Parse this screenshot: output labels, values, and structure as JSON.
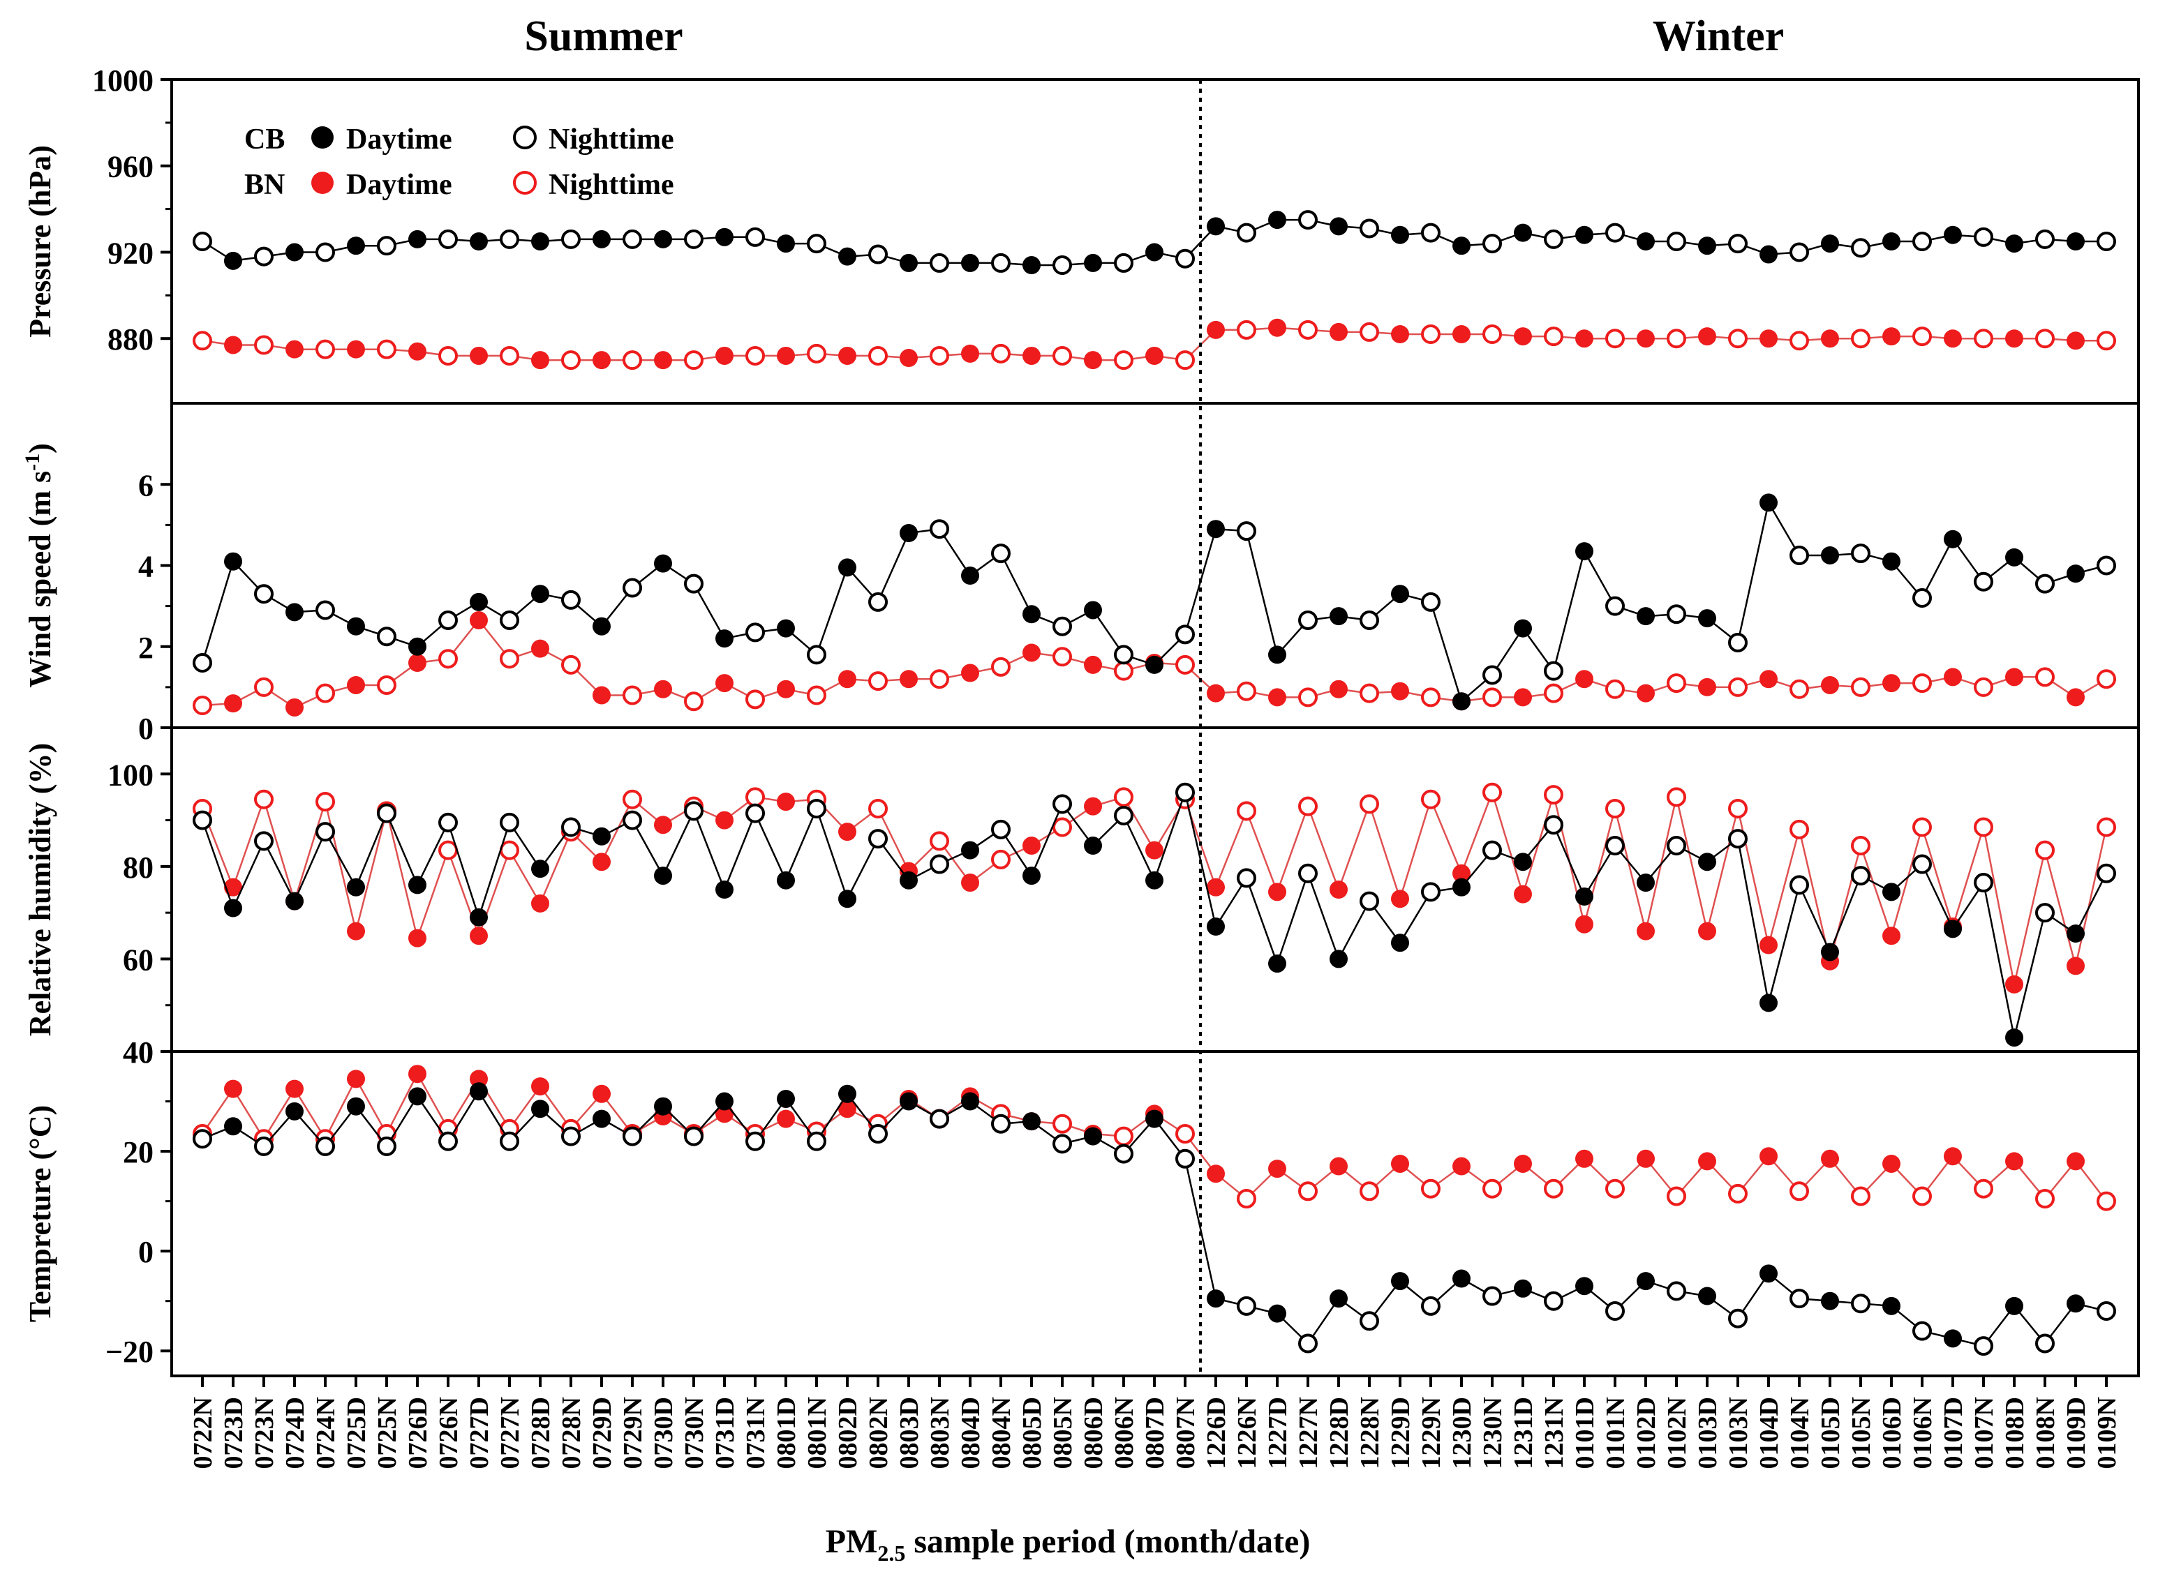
{
  "colors": {
    "cb": "#000000",
    "bn_marker": "#ee1c1c",
    "bn_line": "#e05050",
    "axis": "#000000"
  },
  "season_labels": [
    "Summer",
    "Winter"
  ],
  "x_axis": {
    "label_main": "PM",
    "label_sub": "2.5",
    "label_rest": " sample period (month/date)",
    "categories": [
      "0722N",
      "0723D",
      "0723N",
      "0724D",
      "0724N",
      "0725D",
      "0725N",
      "0726D",
      "0726N",
      "0727D",
      "0727N",
      "0728D",
      "0728N",
      "0729D",
      "0729N",
      "0730D",
      "0730N",
      "0731D",
      "0731N",
      "0801D",
      "0801N",
      "0802D",
      "0802N",
      "0803D",
      "0803N",
      "0804D",
      "0804N",
      "0805D",
      "0805N",
      "0806D",
      "0806N",
      "0807D",
      "0807N",
      "1226D",
      "1226N",
      "1227D",
      "1227N",
      "1228D",
      "1228N",
      "1229D",
      "1229N",
      "1230D",
      "1230N",
      "1231D",
      "1231N",
      "0101D",
      "0101N",
      "0102D",
      "0102N",
      "0103D",
      "0103N",
      "0104D",
      "0104N",
      "0105D",
      "0105N",
      "0106D",
      "0106N",
      "0107D",
      "0107N",
      "0108D",
      "0108N",
      "0109D",
      "0109N"
    ],
    "season_divider_after": "0807N"
  },
  "legend": {
    "rows": [
      {
        "site": "CB",
        "day": "Daytime",
        "night": "Nighttime"
      },
      {
        "site": "BN",
        "day": "Daytime",
        "night": "Nighttime"
      }
    ]
  },
  "chart_data": [
    {
      "type": "line",
      "ylabel": "Pressure (hPa)",
      "ylim": [
        850,
        1000
      ],
      "yticks": [
        880,
        920,
        960,
        1000
      ],
      "yticklabels": [
        "880",
        "920",
        "960",
        "1000"
      ],
      "series": [
        {
          "name": "CB",
          "values": [
            925,
            916,
            918,
            920,
            920,
            923,
            923,
            926,
            926,
            925,
            926,
            925,
            926,
            926,
            926,
            926,
            926,
            927,
            927,
            924,
            924,
            918,
            919,
            915,
            915,
            915,
            915,
            914,
            914,
            915,
            915,
            920,
            917,
            932,
            929,
            935,
            935,
            932,
            931,
            928,
            929,
            923,
            924,
            929,
            926,
            928,
            929,
            925,
            925,
            923,
            924,
            919,
            920,
            924,
            922,
            925,
            925,
            928,
            927,
            924,
            926,
            925,
            925
          ]
        },
        {
          "name": "BN",
          "values": [
            879,
            877,
            877,
            875,
            875,
            875,
            875,
            874,
            872,
            872,
            872,
            870,
            870,
            870,
            870,
            870,
            870,
            872,
            872,
            872,
            873,
            872,
            872,
            871,
            872,
            873,
            873,
            872,
            872,
            870,
            870,
            872,
            870,
            884,
            884,
            885,
            884,
            883,
            883,
            882,
            882,
            882,
            882,
            881,
            881,
            880,
            880,
            880,
            880,
            881,
            880,
            880,
            879,
            880,
            880,
            881,
            881,
            880,
            880,
            880,
            880,
            879,
            879
          ]
        }
      ]
    },
    {
      "type": "line",
      "ylabel": "Wind speed (m s-1)",
      "ylim": [
        0,
        8
      ],
      "yticks": [
        0,
        2,
        4,
        6
      ],
      "yticklabels": [
        "0",
        "2",
        "4",
        "6"
      ],
      "series": [
        {
          "name": "CB",
          "values": [
            1.6,
            4.1,
            3.3,
            2.85,
            2.9,
            2.5,
            2.25,
            2.0,
            2.65,
            3.1,
            2.65,
            3.3,
            3.15,
            2.5,
            3.45,
            4.05,
            3.55,
            2.2,
            2.35,
            2.45,
            1.8,
            3.95,
            3.1,
            4.8,
            4.9,
            3.75,
            4.3,
            2.8,
            2.5,
            2.9,
            1.8,
            1.55,
            2.3,
            4.9,
            4.85,
            1.8,
            2.65,
            2.75,
            2.65,
            3.3,
            3.1,
            0.65,
            1.3,
            2.45,
            1.4,
            4.35,
            3.0,
            2.75,
            2.8,
            2.7,
            2.1,
            5.55,
            4.25,
            4.25,
            4.3,
            4.1,
            3.2,
            4.65,
            3.6,
            4.2,
            3.55,
            3.8,
            4.0
          ]
        },
        {
          "name": "BN",
          "values": [
            0.55,
            0.6,
            1.0,
            0.5,
            0.85,
            1.05,
            1.05,
            1.6,
            1.7,
            2.65,
            1.7,
            1.95,
            1.55,
            0.8,
            0.8,
            0.95,
            0.65,
            1.1,
            0.7,
            0.95,
            0.8,
            1.2,
            1.15,
            1.2,
            1.2,
            1.35,
            1.5,
            1.85,
            1.75,
            1.55,
            1.4,
            1.6,
            1.55,
            0.85,
            0.9,
            0.75,
            0.75,
            0.95,
            0.85,
            0.9,
            0.75,
            0.65,
            0.75,
            0.75,
            0.85,
            1.2,
            0.95,
            0.85,
            1.1,
            1.0,
            1.0,
            1.2,
            0.95,
            1.05,
            1.0,
            1.1,
            1.1,
            1.25,
            1.0,
            1.25,
            1.25,
            0.75,
            1.2
          ]
        }
      ]
    },
    {
      "type": "line",
      "ylabel": "Relative humidity (%)",
      "ylim": [
        40,
        110
      ],
      "yticks": [
        40,
        60,
        80,
        100
      ],
      "yticklabels": [
        "40",
        "60",
        "80",
        "100"
      ],
      "series": [
        {
          "name": "CB",
          "values": [
            90,
            71,
            85.5,
            72.5,
            87.5,
            75.5,
            91.5,
            76,
            89.5,
            69,
            89.5,
            79.5,
            88.5,
            86.5,
            90,
            78,
            92,
            75,
            91.5,
            77,
            92.5,
            73,
            86,
            77,
            80.5,
            83.5,
            88,
            78,
            93.5,
            84.5,
            91,
            77,
            96,
            67,
            77.5,
            59,
            78.5,
            60,
            72.5,
            63.5,
            74.5,
            75.5,
            83.5,
            81,
            89,
            73.5,
            84.5,
            76.5,
            84.5,
            81,
            86,
            50.5,
            76,
            61.5,
            78,
            74.5,
            80.5,
            66.5,
            76.5,
            43,
            70,
            65.5,
            78.5
          ]
        },
        {
          "name": "BN",
          "values": [
            92.5,
            75.5,
            94.5,
            72.5,
            94,
            66,
            92,
            64.5,
            83.5,
            65,
            83.5,
            72,
            87.5,
            81,
            94.5,
            89,
            93,
            90,
            95,
            94,
            94.5,
            87.5,
            92.5,
            79,
            85.5,
            76.5,
            81.5,
            84.5,
            88.5,
            93,
            95,
            83.5,
            94.5,
            75.5,
            92,
            74.5,
            93,
            75,
            93.5,
            73,
            94.5,
            78.5,
            96,
            74,
            95.5,
            67.5,
            92.5,
            66,
            95,
            66,
            92.5,
            63,
            88,
            59.5,
            84.5,
            65,
            88.5,
            67,
            88.5,
            54.5,
            83.5,
            58.5,
            88.5
          ]
        }
      ]
    },
    {
      "type": "line",
      "ylabel": "Tempreture (°C)",
      "ylim": [
        -25,
        40
      ],
      "yticks": [
        -20,
        0,
        20,
        40
      ],
      "yticklabels": [
        "−20",
        "0",
        "20",
        "40"
      ],
      "series": [
        {
          "name": "CB",
          "values": [
            22.5,
            25,
            21,
            28,
            21,
            29,
            21,
            31,
            22,
            32,
            22,
            28.5,
            23,
            26.5,
            23,
            29,
            23,
            30,
            22,
            30.5,
            22,
            31.5,
            23.5,
            30,
            26.5,
            30,
            25.5,
            26,
            21.5,
            23,
            19.5,
            26.5,
            18.5,
            -9.5,
            -11,
            -12.5,
            -18.5,
            -9.5,
            -14,
            -6,
            -11,
            -5.5,
            -9,
            -7.5,
            -10,
            -7,
            -12,
            -6,
            -8,
            -9,
            -13.5,
            -4.5,
            -9.5,
            -10,
            -10.5,
            -11,
            -16,
            -17.5,
            -19,
            -11,
            -18.5,
            -10.5,
            -12
          ]
        },
        {
          "name": "BN",
          "values": [
            23.5,
            32.5,
            22.5,
            32.5,
            22.5,
            34.5,
            23.5,
            35.5,
            24.5,
            34.5,
            24.5,
            33,
            24.5,
            31.5,
            23.5,
            27,
            23.5,
            27.5,
            23.5,
            26.5,
            24,
            28.5,
            25.5,
            30.5,
            26.5,
            31,
            27.5,
            26,
            25.5,
            23.5,
            23,
            27.5,
            23.5,
            15.5,
            10.5,
            16.5,
            12,
            17,
            12,
            17.5,
            12.5,
            17,
            12.5,
            17.5,
            12.5,
            18.5,
            12.5,
            18.5,
            11,
            18,
            11.5,
            19,
            12,
            18.5,
            11,
            17.5,
            11,
            19,
            12.5,
            18,
            10.5,
            18,
            10
          ]
        }
      ]
    }
  ]
}
